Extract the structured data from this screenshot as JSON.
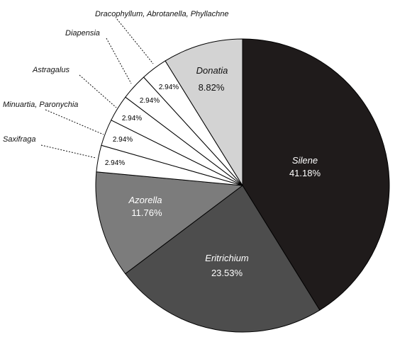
{
  "chart_data": {
    "type": "pie",
    "start_angle_deg": 0,
    "direction": "clockwise",
    "slices": [
      {
        "label": "Silene",
        "value": 41.18,
        "value_label": "41.18%",
        "color": "#1f1b1b",
        "text_color": "#ffffff",
        "label_mode": "inside"
      },
      {
        "label": "Eritrichium",
        "value": 23.53,
        "value_label": "23.53%",
        "color": "#4d4d4d",
        "text_color": "#ffffff",
        "label_mode": "inside"
      },
      {
        "label": "Azorella",
        "value": 11.76,
        "value_label": "11.76%",
        "color": "#7c7c7c",
        "text_color": "#ffffff",
        "label_mode": "inside"
      },
      {
        "label": "Saxifraga",
        "value": 2.94,
        "value_label": "2.94%",
        "color": "#ffffff",
        "text_color": "#000000",
        "label_mode": "callout"
      },
      {
        "label": "Minuartia, Paronychia",
        "value": 2.94,
        "value_label": "2.94%",
        "color": "#ffffff",
        "text_color": "#000000",
        "label_mode": "callout"
      },
      {
        "label": "Astragalus",
        "value": 2.94,
        "value_label": "2.94%",
        "color": "#ffffff",
        "text_color": "#000000",
        "label_mode": "callout"
      },
      {
        "label": "Diapensia",
        "value": 2.94,
        "value_label": "2.94%",
        "color": "#ffffff",
        "text_color": "#000000",
        "label_mode": "callout"
      },
      {
        "label": "Dracophyllum, Abrotanella, Phyllachne",
        "value": 2.94,
        "value_label": "2.94%",
        "color": "#ffffff",
        "text_color": "#000000",
        "label_mode": "callout"
      },
      {
        "label": "Donatia",
        "value": 8.82,
        "value_label": "8.82%",
        "color": "#d3d3d3",
        "text_color": "#111111",
        "label_mode": "inside"
      }
    ]
  }
}
